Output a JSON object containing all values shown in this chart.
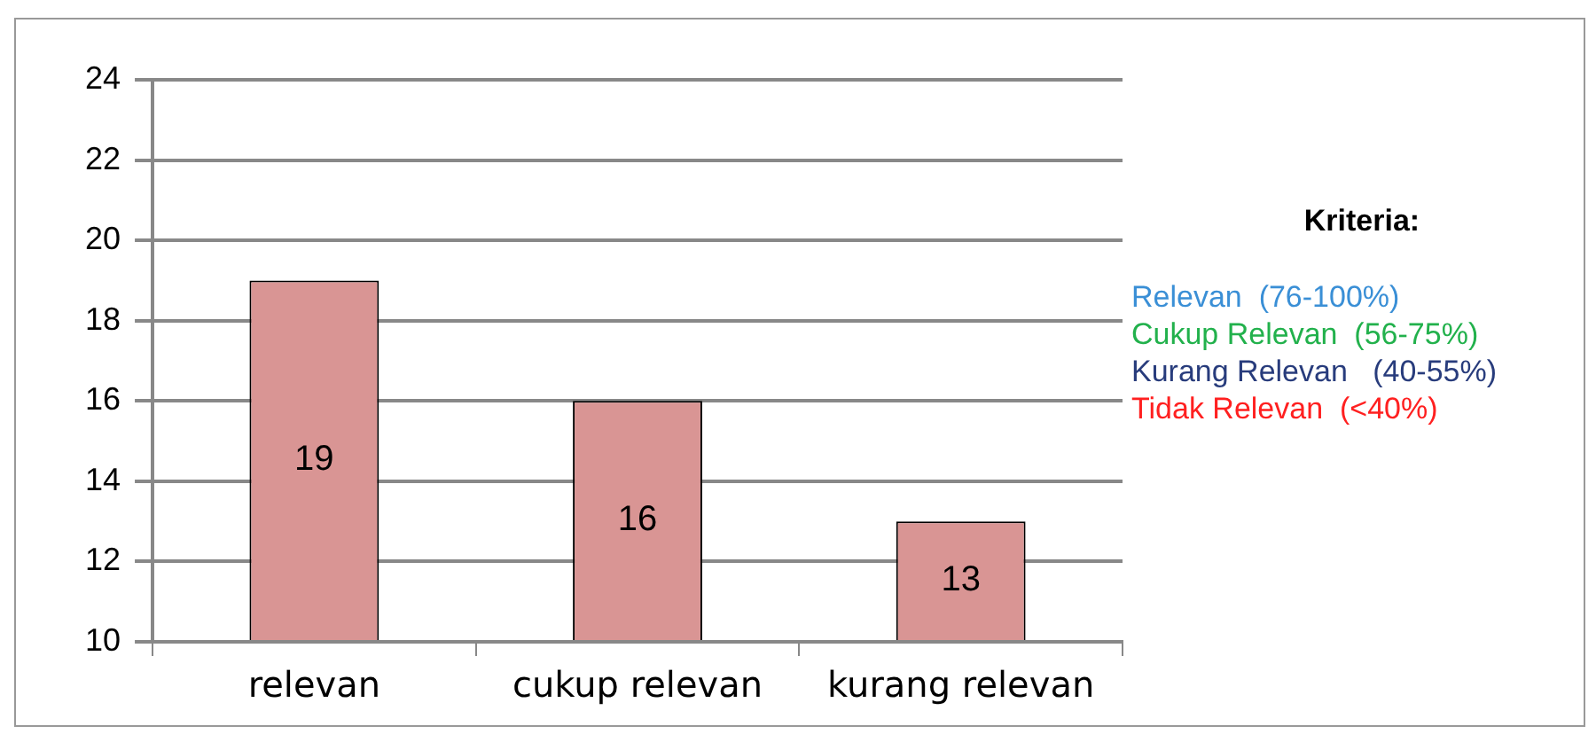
{
  "chart_data": {
    "type": "bar",
    "categories": [
      "relevan",
      "cukup relevan",
      "kurang relevan"
    ],
    "values": [
      19,
      16,
      13
    ],
    "color": "#d99594",
    "ylim": [
      10,
      24
    ],
    "yticks": [
      10,
      12,
      14,
      16,
      18,
      20,
      22,
      24
    ],
    "grid": "y",
    "data_labels": true,
    "legend": false,
    "annotations": [
      "Kriteria:",
      "Relevan  (76-100%)",
      "Cukup Relevan  (56-75%)",
      "Kurang Relevan   (40-55%)",
      "Tidak Relevan  (<40%)"
    ]
  }
}
